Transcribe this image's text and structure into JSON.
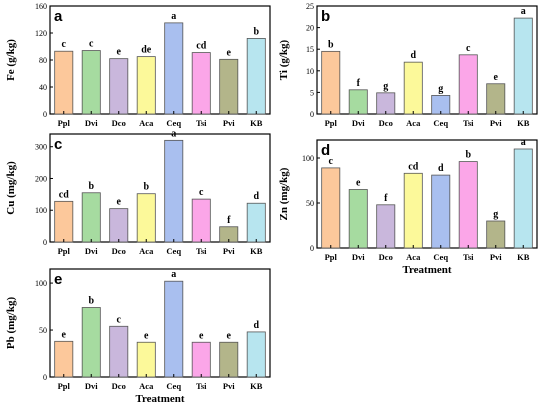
{
  "colors": {
    "bars": [
      "#fcc89b",
      "#a6dba0",
      "#c9b7dc",
      "#fcf99a",
      "#a9bfef",
      "#fba6e8",
      "#b3b58a",
      "#b7e5ef"
    ]
  },
  "chart_data": [
    {
      "panel": "a",
      "type": "bar",
      "categories": [
        "Ppl",
        "Dvi",
        "Dco",
        "Aca",
        "Ceq",
        "Tsi",
        "Pvi",
        "KB"
      ],
      "values": [
        93,
        94,
        82,
        85,
        135,
        91,
        81,
        112
      ],
      "letters": [
        "c",
        "c",
        "e",
        "de",
        "a",
        "cd",
        "e",
        "b"
      ],
      "ylabel": "Fe (g/kg)",
      "xlabel": "",
      "ylim": [
        0,
        160
      ],
      "yticks": [
        0,
        40,
        80,
        120,
        160
      ]
    },
    {
      "panel": "b",
      "type": "bar",
      "categories": [
        "Ppl",
        "Dvi",
        "Dco",
        "Aca",
        "Ceq",
        "Tsi",
        "Pvi",
        "KB"
      ],
      "values": [
        14.5,
        5.6,
        4.9,
        12.0,
        4.3,
        13.7,
        7.0,
        22.2
      ],
      "letters": [
        "b",
        "f",
        "g",
        "d",
        "g",
        "c",
        "e",
        "a"
      ],
      "ylabel": "Ti (g/kg)",
      "xlabel": "",
      "ylim": [
        0,
        25
      ],
      "yticks": [
        0,
        5,
        10,
        15,
        20,
        25
      ]
    },
    {
      "panel": "c",
      "type": "bar",
      "categories": [
        "Ppl",
        "Dvi",
        "Dco",
        "Aca",
        "Ceq",
        "Tsi",
        "Pvi",
        "KB"
      ],
      "values": [
        128,
        155,
        105,
        152,
        320,
        135,
        48,
        122
      ],
      "letters": [
        "cd",
        "b",
        "e",
        "b",
        "a",
        "c",
        "f",
        "d"
      ],
      "ylabel": "Cu (mg/kg)",
      "xlabel": "",
      "ylim": [
        0,
        340
      ],
      "yticks": [
        0,
        100,
        200,
        300
      ]
    },
    {
      "panel": "d",
      "type": "bar",
      "categories": [
        "Ppl",
        "Dvi",
        "Dco",
        "Aca",
        "Ceq",
        "Tsi",
        "Pvi",
        "KB"
      ],
      "values": [
        89,
        65,
        48,
        83,
        81,
        96,
        30,
        110
      ],
      "letters": [
        "c",
        "e",
        "f",
        "cd",
        "d",
        "b",
        "g",
        "a"
      ],
      "ylabel": "Zn (mg/kg)",
      "xlabel": "Treatment",
      "ylim": [
        0,
        120
      ],
      "yticks": [
        0,
        50,
        100
      ]
    },
    {
      "panel": "e",
      "type": "bar",
      "categories": [
        "Ppl",
        "Dvi",
        "Dco",
        "Aca",
        "Ceq",
        "Tsi",
        "Pvi",
        "KB"
      ],
      "values": [
        38,
        74,
        54,
        37,
        102,
        37,
        37,
        48
      ],
      "letters": [
        "e",
        "b",
        "c",
        "e",
        "a",
        "e",
        "e",
        "d"
      ],
      "ylabel": "Pb (mg/kg)",
      "xlabel": "Treatment",
      "ylim": [
        0,
        115
      ],
      "yticks": [
        0,
        50,
        100
      ]
    }
  ]
}
